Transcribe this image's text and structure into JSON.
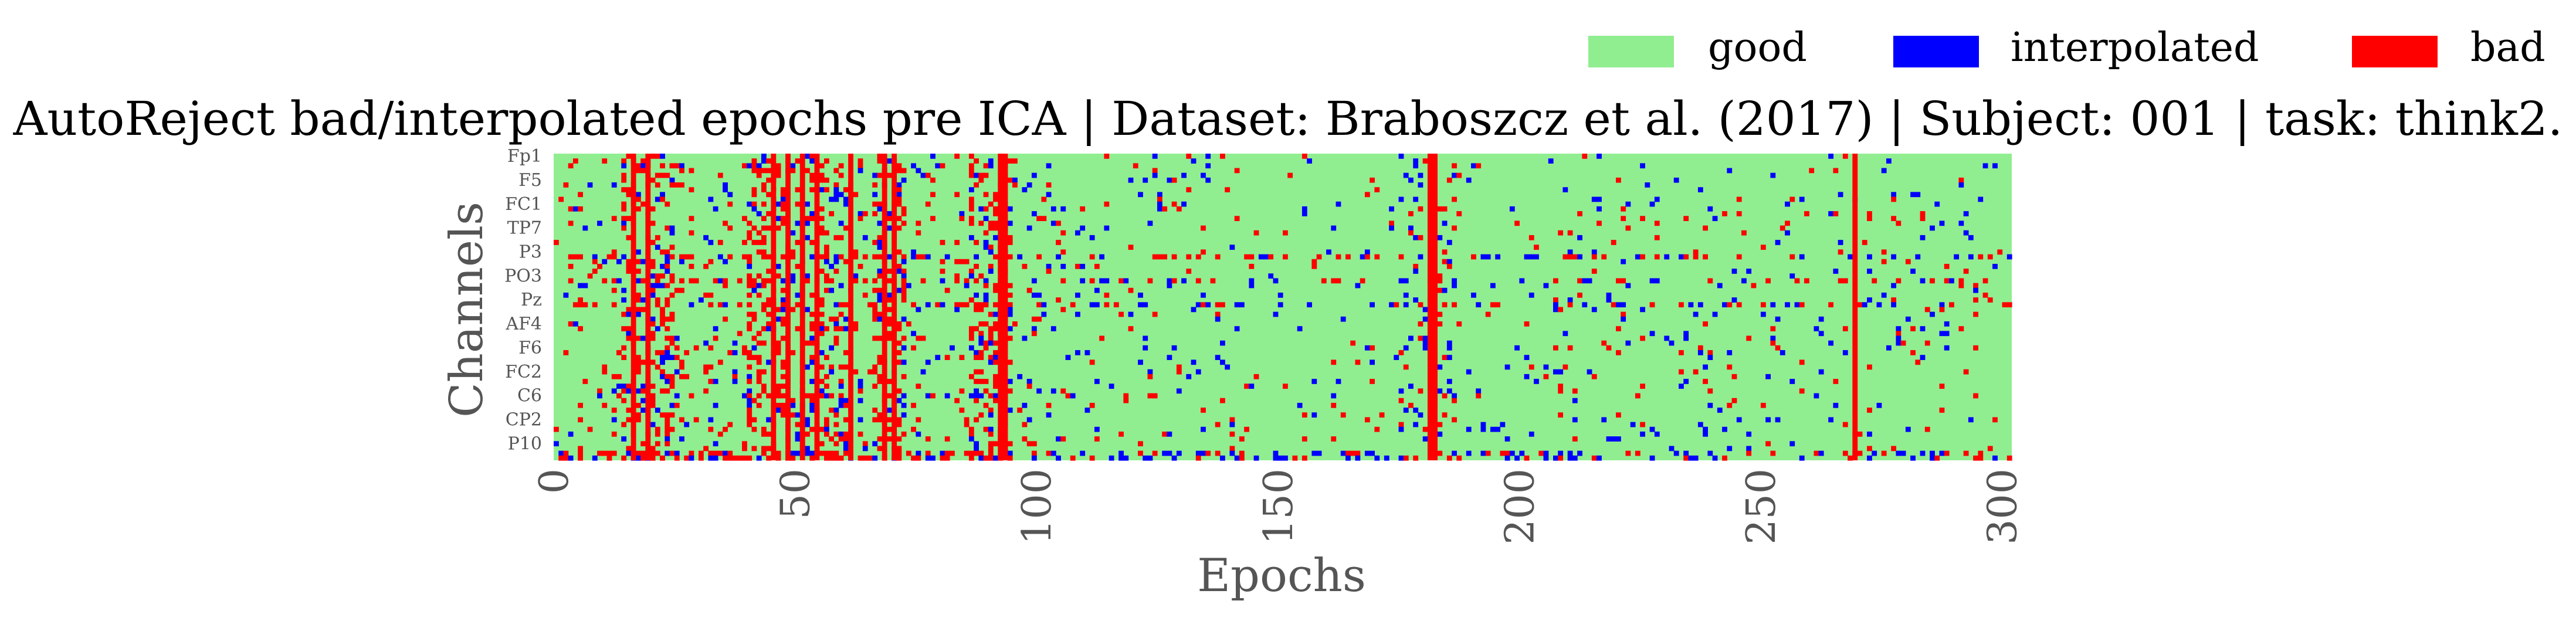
{
  "figure": {
    "title": "AutoReject bad/interpolated epochs pre ICA | Dataset: Braboszcz et al. (2017) | Subject: 001 | task: think2.",
    "xlabel": "Epochs",
    "ylabel": "Channels"
  },
  "legend": {
    "placement": "top-right",
    "items": [
      {
        "label": "good",
        "color": "#90ee90"
      },
      {
        "label": "interpolated",
        "color": "#0000ff"
      },
      {
        "label": "bad",
        "color": "#ff0000"
      }
    ]
  },
  "chart_data": {
    "type": "heatmap",
    "title": "AutoReject bad/interpolated epochs pre ICA | Dataset: Braboszcz et al. (2017) | Subject: 001 | task: think2.",
    "xlabel": "Epochs",
    "ylabel": "Channels",
    "xlim": [
      0,
      302
    ],
    "n_channels": 64,
    "categories_legend": [
      "good",
      "interpolated",
      "bad"
    ],
    "colors": {
      "good": "#90ee90",
      "interpolated": "#0000ff",
      "bad": "#ff0000"
    },
    "x_ticks": [
      0,
      50,
      100,
      150,
      200,
      250,
      300
    ],
    "y_tick_labels": [
      "Fp1",
      "F5",
      "FC1",
      "TP7",
      "P3",
      "PO3",
      "Pz",
      "AF4",
      "F6",
      "FC2",
      "C6",
      "CP2",
      "P10"
    ],
    "y_tick_rows": [
      0,
      5,
      10,
      15,
      20,
      25,
      30,
      35,
      40,
      45,
      50,
      55,
      60
    ],
    "bad_epochs": [
      16,
      19,
      45,
      48,
      51,
      54,
      61,
      68,
      70,
      92,
      93,
      181,
      182,
      269
    ],
    "grid": false
  }
}
